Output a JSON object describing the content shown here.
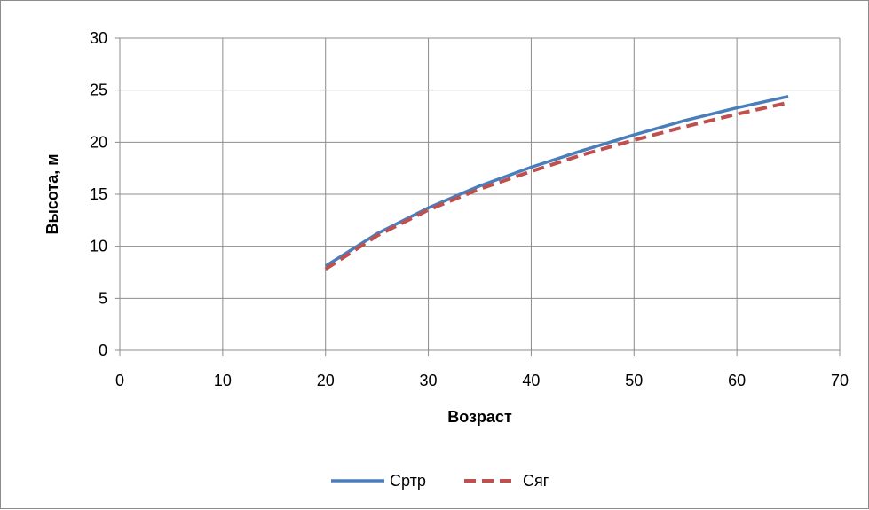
{
  "chart_data": {
    "type": "line",
    "title": "",
    "xlabel": "Возраст",
    "ylabel": "Высота, м",
    "xlim": [
      0,
      70
    ],
    "ylim": [
      0,
      30
    ],
    "xticks": [
      0,
      10,
      20,
      30,
      40,
      50,
      60,
      70
    ],
    "yticks": [
      0,
      5,
      10,
      15,
      20,
      25,
      30
    ],
    "grid": true,
    "legend": "bottom",
    "series": [
      {
        "name": "Сртр",
        "color": "#4a7ebb",
        "dash": "solid",
        "x": [
          20,
          25,
          30,
          35,
          40,
          45,
          50,
          55,
          60,
          65
        ],
        "y": [
          8.1,
          11.2,
          13.7,
          15.8,
          17.6,
          19.2,
          20.7,
          22.1,
          23.3,
          24.4
        ]
      },
      {
        "name": "Сяг",
        "color": "#c0504d",
        "dash": "dashed",
        "x": [
          20,
          25,
          30,
          35,
          40,
          45,
          50,
          55,
          60,
          65
        ],
        "y": [
          7.8,
          11.0,
          13.5,
          15.5,
          17.2,
          18.8,
          20.2,
          21.5,
          22.7,
          23.8
        ]
      }
    ]
  }
}
